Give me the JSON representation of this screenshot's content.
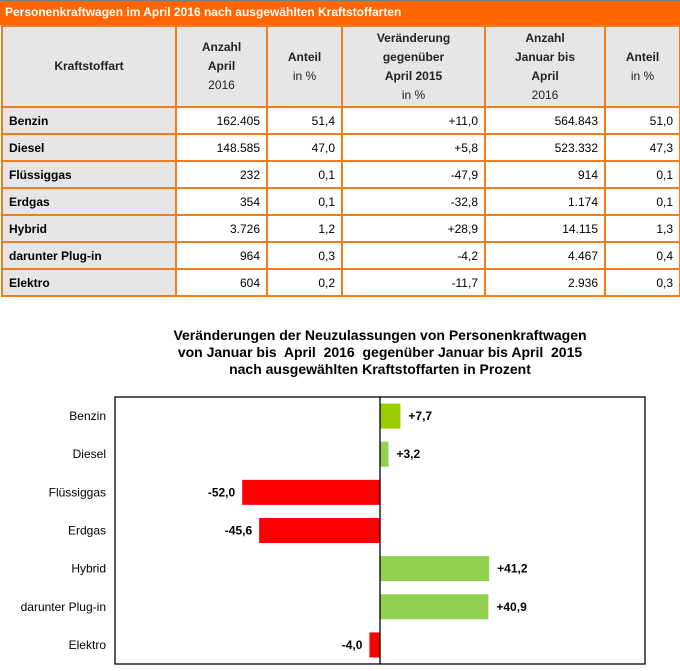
{
  "table": {
    "title": "Personenkraftwagen im April 2016 nach ausgewählten Kraftstoffarten",
    "headers": [
      {
        "lines": [
          "Kraftstoffart"
        ]
      },
      {
        "lines": [
          "Anzahl",
          "April"
        ],
        "reg": "2016"
      },
      {
        "lines": [
          "Anteil"
        ],
        "reg": "in %"
      },
      {
        "lines": [
          "Veränderung",
          "gegenüber",
          "April 2015"
        ],
        "reg": "in %"
      },
      {
        "lines": [
          "Anzahl",
          "Januar bis",
          "April"
        ],
        "reg": "2016"
      },
      {
        "lines": [
          "Anteil"
        ],
        "reg": "in %"
      }
    ],
    "rows": [
      [
        "Benzin",
        "162.405",
        "51,4",
        "+11,0",
        "564.843",
        "51,0"
      ],
      [
        "Diesel",
        "148.585",
        "47,0",
        "+5,8",
        "523.332",
        "47,3"
      ],
      [
        "Flüssiggas",
        "232",
        "0,1",
        "-47,9",
        "914",
        "0,1"
      ],
      [
        "Erdgas",
        "354",
        "0,1",
        "-32,8",
        "1.174",
        "0,1"
      ],
      [
        "Hybrid",
        "3.726",
        "1,2",
        "+28,9",
        "14.115",
        "1,3"
      ],
      [
        "darunter Plug-in",
        "964",
        "0,3",
        "-4,2",
        "4.467",
        "0,4"
      ],
      [
        "Elektro",
        "604",
        "0,2",
        "-11,7",
        "2.936",
        "0,3"
      ]
    ]
  },
  "chart_data": {
    "type": "bar",
    "orientation": "horizontal",
    "title_lines": [
      "Veränderungen der Neuzulassungen von Personenkraftwagen",
      "von Januar bis  April  2016  gegenüber Januar bis April  2015",
      "nach ausgewählten Kraftstoffarten in Prozent"
    ],
    "categories": [
      "Benzin",
      "Diesel",
      "Flüssiggas",
      "Erdgas",
      "Hybrid",
      "darunter Plug-in",
      "Elektro"
    ],
    "values": [
      7.7,
      3.2,
      -52.0,
      -45.6,
      41.2,
      40.9,
      -4.0
    ],
    "value_labels": [
      "+7,7",
      "+3,2",
      "-52,0",
      "-45,6",
      "+41,2",
      "+40,9",
      "-4,0"
    ],
    "colors": [
      "#99CC00",
      "#92D050",
      "#FF0000",
      "#FF0000",
      "#92D050",
      "#92D050",
      "#FF0000"
    ],
    "xlim": [
      -100,
      100
    ],
    "xlabel": "",
    "ylabel": "",
    "grid": false,
    "legend": "none"
  },
  "colors": {
    "accent": "#FF6600",
    "border": "#F07D1E",
    "header_bg": "#E6E6E6"
  }
}
